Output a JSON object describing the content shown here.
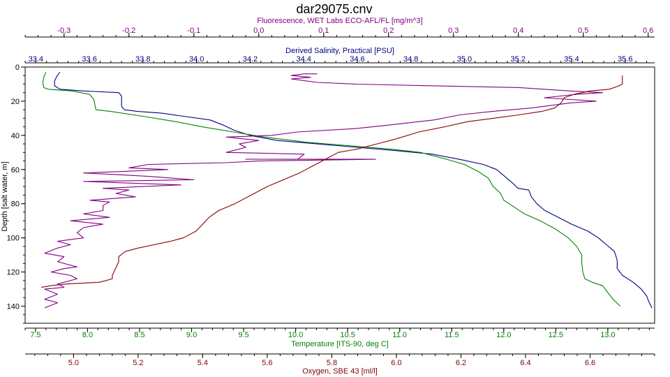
{
  "chart_data": {
    "type": "line",
    "title": "dar29075.cnv",
    "grid": false,
    "legend": "none",
    "y_axis": {
      "label": "Depth [salt water, m]",
      "range": [
        0,
        150
      ],
      "ticks": [
        0,
        20,
        40,
        60,
        80,
        100,
        120,
        140
      ],
      "inverted": true
    },
    "x_axes": [
      {
        "key": "fluorescence",
        "label": "Fluorescence, WET Labs ECO-AFL/FL [mg/m^3]",
        "position": "top-outer",
        "color": "#800080",
        "range": [
          -0.36,
          0.61
        ],
        "ticks": [
          -0.3,
          -0.2,
          -0.1,
          0.0,
          0.1,
          0.2,
          0.3,
          0.4,
          0.5,
          0.6
        ],
        "tick_labels": [
          "-0.3",
          "-0.2",
          "-0.1",
          "0.0",
          "0.1",
          "0.2",
          "0.3",
          "0.4",
          "0.5",
          "0.6"
        ]
      },
      {
        "key": "salinity",
        "label": "Derived Salinity, Practical [PSU]",
        "position": "top-inner",
        "color": "#000080",
        "range": [
          33.36,
          35.71
        ],
        "ticks": [
          33.4,
          33.6,
          33.8,
          34.0,
          34.2,
          34.4,
          34.6,
          34.8,
          35.0,
          35.2,
          35.4,
          35.6
        ],
        "tick_labels": [
          "33.4",
          "33.6",
          "33.8",
          "34.0",
          "34.2",
          "34.4",
          "34.6",
          "34.8",
          "35.0",
          "35.2",
          "35.4",
          "35.6"
        ]
      },
      {
        "key": "temperature",
        "label": "Temperature [ITS-90, deg C]",
        "position": "bottom-inner",
        "color": "#008000",
        "range": [
          7.4,
          13.45
        ],
        "ticks": [
          7.5,
          8.0,
          8.5,
          9.0,
          9.5,
          10.0,
          10.5,
          11.0,
          11.5,
          12.0,
          12.5,
          13.0
        ],
        "tick_labels": [
          "7.5",
          "8.0",
          "8.5",
          "9.0",
          "9.5",
          "10.0",
          "10.5",
          "11.0",
          "11.5",
          "12.0",
          "12.5",
          "13.0"
        ]
      },
      {
        "key": "oxygen",
        "label": "Oxygen, SBE 43 [ml/l]",
        "position": "bottom-outer",
        "color": "#800000",
        "range": [
          4.85,
          6.8
        ],
        "ticks": [
          5.0,
          5.2,
          5.4,
          5.6,
          5.8,
          6.0,
          6.2,
          6.4,
          6.6
        ],
        "tick_labels": [
          "5.0",
          "5.2",
          "5.4",
          "5.6",
          "5.8",
          "6.0",
          "6.2",
          "6.4",
          "6.6"
        ]
      }
    ],
    "series": [
      {
        "key": "salinity",
        "color": "#000080",
        "points": [
          [
            33.49,
            3
          ],
          [
            33.48,
            5
          ],
          [
            33.47,
            8
          ],
          [
            33.47,
            11
          ],
          [
            33.49,
            13
          ],
          [
            33.58,
            14
          ],
          [
            33.71,
            15
          ],
          [
            33.72,
            17
          ],
          [
            33.72,
            20
          ],
          [
            33.72,
            23
          ],
          [
            33.73,
            25
          ],
          [
            33.78,
            26
          ],
          [
            33.87,
            27
          ],
          [
            33.96,
            29
          ],
          [
            34.05,
            31
          ],
          [
            34.1,
            34
          ],
          [
            34.14,
            37
          ],
          [
            34.2,
            40
          ],
          [
            34.3,
            43
          ],
          [
            34.45,
            45
          ],
          [
            34.6,
            47
          ],
          [
            34.75,
            49
          ],
          [
            34.88,
            51
          ],
          [
            34.98,
            54
          ],
          [
            35.07,
            57
          ],
          [
            35.12,
            60
          ],
          [
            35.15,
            64
          ],
          [
            35.18,
            68
          ],
          [
            35.2,
            71
          ],
          [
            35.24,
            72
          ],
          [
            35.25,
            76
          ],
          [
            35.27,
            80
          ],
          [
            35.3,
            84
          ],
          [
            35.35,
            88
          ],
          [
            35.4,
            92
          ],
          [
            35.46,
            96
          ],
          [
            35.5,
            100
          ],
          [
            35.53,
            104
          ],
          [
            35.56,
            108
          ],
          [
            35.57,
            113
          ],
          [
            35.57,
            118
          ],
          [
            35.59,
            122
          ],
          [
            35.63,
            126
          ],
          [
            35.66,
            130
          ],
          [
            35.68,
            134
          ],
          [
            35.69,
            138
          ],
          [
            35.7,
            141
          ]
        ]
      },
      {
        "key": "temperature",
        "color": "#008000",
        "points": [
          [
            7.6,
            3
          ],
          [
            7.58,
            6
          ],
          [
            7.57,
            9
          ],
          [
            7.58,
            12
          ],
          [
            7.62,
            13
          ],
          [
            7.85,
            14
          ],
          [
            8.02,
            16
          ],
          [
            8.06,
            19
          ],
          [
            8.07,
            22
          ],
          [
            8.08,
            25
          ],
          [
            8.22,
            26
          ],
          [
            8.55,
            29
          ],
          [
            8.85,
            32
          ],
          [
            9.1,
            35
          ],
          [
            9.4,
            38
          ],
          [
            9.7,
            41
          ],
          [
            10.1,
            44
          ],
          [
            10.5,
            46
          ],
          [
            10.9,
            48
          ],
          [
            11.2,
            50
          ],
          [
            11.45,
            54
          ],
          [
            11.62,
            57
          ],
          [
            11.75,
            61
          ],
          [
            11.85,
            65
          ],
          [
            11.9,
            70
          ],
          [
            11.97,
            74
          ],
          [
            12.0,
            78
          ],
          [
            12.1,
            82
          ],
          [
            12.2,
            86
          ],
          [
            12.35,
            90
          ],
          [
            12.5,
            95
          ],
          [
            12.62,
            100
          ],
          [
            12.7,
            105
          ],
          [
            12.75,
            110
          ],
          [
            12.75,
            115
          ],
          [
            12.76,
            120
          ],
          [
            12.78,
            124
          ],
          [
            12.85,
            126
          ],
          [
            12.95,
            128
          ],
          [
            13.0,
            132
          ],
          [
            13.05,
            136
          ],
          [
            13.12,
            140
          ]
        ]
      },
      {
        "key": "fluorescence",
        "color": "#800080",
        "points": [
          [
            0.09,
            4
          ],
          [
            0.07,
            4
          ],
          [
            0.05,
            5
          ],
          [
            0.08,
            6
          ],
          [
            0.05,
            7
          ],
          [
            0.09,
            9
          ],
          [
            0.15,
            10
          ],
          [
            0.27,
            11
          ],
          [
            0.4,
            12
          ],
          [
            0.48,
            14
          ],
          [
            0.53,
            15
          ],
          [
            0.49,
            16
          ],
          [
            0.44,
            18
          ],
          [
            0.52,
            20
          ],
          [
            0.48,
            21
          ],
          [
            0.42,
            24
          ],
          [
            0.36,
            26
          ],
          [
            0.31,
            28
          ],
          [
            0.27,
            31
          ],
          [
            0.2,
            34
          ],
          [
            0.15,
            36
          ],
          [
            0.06,
            38
          ],
          [
            0.02,
            40
          ],
          [
            -0.05,
            41
          ],
          [
            0.0,
            43
          ],
          [
            -0.03,
            45
          ],
          [
            -0.02,
            47
          ],
          [
            -0.05,
            50
          ],
          [
            0.07,
            51
          ],
          [
            0.06,
            54
          ],
          [
            -0.02,
            54
          ],
          [
            0.18,
            54
          ],
          [
            0.0,
            55
          ],
          [
            -0.05,
            56
          ],
          [
            -0.17,
            57
          ],
          [
            -0.2,
            59
          ],
          [
            -0.14,
            60
          ],
          [
            -0.2,
            61
          ],
          [
            -0.27,
            62
          ],
          [
            -0.22,
            63
          ],
          [
            -0.17,
            64
          ],
          [
            -0.1,
            66
          ],
          [
            -0.27,
            67
          ],
          [
            -0.12,
            69
          ],
          [
            -0.24,
            71
          ],
          [
            -0.2,
            72
          ],
          [
            -0.22,
            74
          ],
          [
            -0.19,
            76
          ],
          [
            -0.26,
            78
          ],
          [
            -0.23,
            79
          ],
          [
            -0.24,
            81
          ],
          [
            -0.24,
            84
          ],
          [
            -0.27,
            86
          ],
          [
            -0.23,
            88
          ],
          [
            -0.29,
            90
          ],
          [
            -0.24,
            92
          ],
          [
            -0.27,
            94
          ],
          [
            -0.28,
            97
          ],
          [
            -0.27,
            100
          ],
          [
            -0.31,
            102
          ],
          [
            -0.29,
            104
          ],
          [
            -0.31,
            106
          ],
          [
            -0.33,
            109
          ],
          [
            -0.3,
            111
          ],
          [
            -0.31,
            114
          ],
          [
            -0.28,
            117
          ],
          [
            -0.3,
            118
          ],
          [
            -0.32,
            120
          ],
          [
            -0.29,
            122
          ],
          [
            -0.28,
            124
          ],
          [
            -0.31,
            127
          ],
          [
            -0.3,
            129
          ],
          [
            -0.33,
            130
          ],
          [
            -0.31,
            133
          ],
          [
            -0.33,
            136
          ],
          [
            -0.31,
            138
          ],
          [
            -0.33,
            141
          ]
        ]
      },
      {
        "key": "oxygen",
        "color": "#800000",
        "points": [
          [
            6.7,
            5
          ],
          [
            6.7,
            8
          ],
          [
            6.7,
            10
          ],
          [
            6.69,
            11
          ],
          [
            6.66,
            13
          ],
          [
            6.6,
            14
          ],
          [
            6.55,
            16
          ],
          [
            6.52,
            18
          ],
          [
            6.51,
            21
          ],
          [
            6.49,
            24
          ],
          [
            6.45,
            26
          ],
          [
            6.38,
            28
          ],
          [
            6.3,
            30
          ],
          [
            6.22,
            32
          ],
          [
            6.15,
            35
          ],
          [
            6.07,
            38
          ],
          [
            6.0,
            42
          ],
          [
            5.94,
            45
          ],
          [
            5.88,
            48
          ],
          [
            5.82,
            50
          ],
          [
            5.78,
            54
          ],
          [
            5.74,
            58
          ],
          [
            5.7,
            62
          ],
          [
            5.65,
            66
          ],
          [
            5.6,
            70
          ],
          [
            5.55,
            75
          ],
          [
            5.5,
            80
          ],
          [
            5.45,
            84
          ],
          [
            5.42,
            88
          ],
          [
            5.4,
            92
          ],
          [
            5.38,
            96
          ],
          [
            5.34,
            100
          ],
          [
            5.3,
            102
          ],
          [
            5.25,
            104
          ],
          [
            5.2,
            106
          ],
          [
            5.16,
            108
          ],
          [
            5.14,
            111
          ],
          [
            5.14,
            114
          ],
          [
            5.13,
            118
          ],
          [
            5.12,
            122
          ],
          [
            5.12,
            124
          ],
          [
            5.08,
            126
          ],
          [
            4.98,
            127
          ],
          [
            4.93,
            128
          ],
          [
            4.9,
            129
          ]
        ]
      }
    ]
  }
}
